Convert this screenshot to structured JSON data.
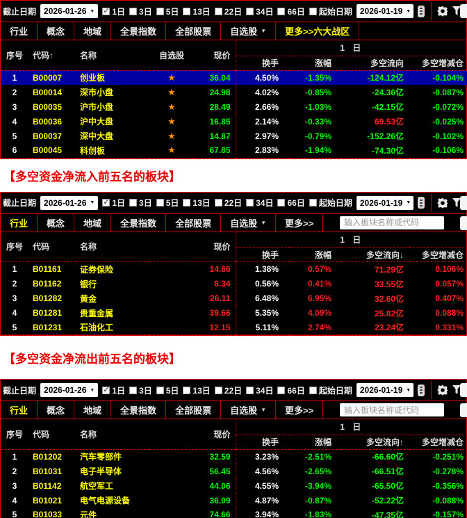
{
  "colors": {
    "panel_bg": "#000000",
    "frame_red": "#e00000",
    "dashed_red": "#c80000",
    "value_green": "#00ff00",
    "value_red": "#ff2222",
    "code_yellow": "#ffff00",
    "turnover_white": "#ffffff",
    "selected_row_bg": "#0000a2",
    "caption_red": "#e60000",
    "star_orange": "#ff9000",
    "tab_active_yellow": "#ffff00"
  },
  "captions": {
    "inflow": "【多空资金净流入前五名的板块】",
    "outflow": "【多空资金净流出前五名的板块】"
  },
  "toolbar": {
    "end_date_label": "截止日期",
    "end_date_value": "2026-01-26",
    "periods": [
      {
        "label": "1日",
        "checked": true
      },
      {
        "label": "3日",
        "checked": false
      },
      {
        "label": "5日",
        "checked": false
      },
      {
        "label": "13日",
        "checked": false
      },
      {
        "label": "22日",
        "checked": false
      },
      {
        "label": "34日",
        "checked": false
      },
      {
        "label": "66日",
        "checked": false
      }
    ],
    "start_date_label": "起始日期",
    "start_date_checked": false,
    "start_date_value": "2026-01-19",
    "icons": [
      "list-icon",
      "gear-icon",
      "filter-icon"
    ]
  },
  "search_placeholder": "输入板块名称或代码",
  "group_header": "1 日",
  "columns": {
    "seq": "序号",
    "code": "代码",
    "name": "名称",
    "watch": "自选股",
    "price": "现价",
    "turnover": "换手",
    "change": "涨幅",
    "flow": "多空流向",
    "delta": "多空增减仓"
  },
  "panels": [
    {
      "id": "main-indices",
      "tabs": [
        {
          "label": "行业"
        },
        {
          "label": "概念"
        },
        {
          "label": "地域"
        },
        {
          "label": "全景指数"
        },
        {
          "label": "全部股票"
        },
        {
          "label": "自选股",
          "dropdown": true
        },
        {
          "label": "更多>>六大战区",
          "active": true
        }
      ],
      "has_search": false,
      "has_watch_col": true,
      "code_sort_arrow": "↑",
      "flow_sort_arrow": "",
      "rows": [
        {
          "seq": "1",
          "code": "B00007",
          "name": "创业板",
          "price": "36.04",
          "turnover": "4.50%",
          "change": "-1.35%",
          "flow": "-124.12亿",
          "delta": "-0.104%",
          "vc": [
            "g",
            "w",
            "g",
            "g",
            "g"
          ],
          "selected": true
        },
        {
          "seq": "2",
          "code": "B00014",
          "name": "深市小盘",
          "price": "24.98",
          "turnover": "4.02%",
          "change": "-0.85%",
          "flow": "-24.36亿",
          "delta": "-0.087%",
          "vc": [
            "g",
            "w",
            "g",
            "g",
            "g"
          ]
        },
        {
          "seq": "3",
          "code": "B00035",
          "name": "沪市小盘",
          "price": "28.49",
          "turnover": "2.66%",
          "change": "-1.03%",
          "flow": "-42.15亿",
          "delta": "-0.072%",
          "vc": [
            "g",
            "w",
            "g",
            "g",
            "g"
          ]
        },
        {
          "seq": "4",
          "code": "B00036",
          "name": "沪中大盘",
          "price": "16.85",
          "turnover": "2.14%",
          "change": "-0.33%",
          "flow": "69.53亿",
          "delta": "-0.025%",
          "vc": [
            "g",
            "w",
            "g",
            "r",
            "g"
          ]
        },
        {
          "seq": "5",
          "code": "B00037",
          "name": "深中大盘",
          "price": "14.87",
          "turnover": "2.97%",
          "change": "-0.79%",
          "flow": "-152.26亿",
          "delta": "-0.102%",
          "vc": [
            "g",
            "w",
            "g",
            "g",
            "g"
          ]
        },
        {
          "seq": "6",
          "code": "B00045",
          "name": "科创板",
          "price": "67.85",
          "turnover": "2.83%",
          "change": "-1.94%",
          "flow": "-74.30亿",
          "delta": "-0.106%",
          "vc": [
            "g",
            "w",
            "g",
            "g",
            "g"
          ]
        }
      ]
    },
    {
      "id": "top-inflow",
      "tabs": [
        {
          "label": "行业",
          "active": true
        },
        {
          "label": "概念"
        },
        {
          "label": "地域"
        },
        {
          "label": "全景指数"
        },
        {
          "label": "全部股票"
        },
        {
          "label": "自选股",
          "dropdown": true
        },
        {
          "label": "更多>>"
        }
      ],
      "has_search": true,
      "has_watch_col": false,
      "code_sort_arrow": "",
      "flow_sort_arrow": "↓",
      "rows": [
        {
          "seq": "1",
          "code": "B01161",
          "name": "证券保险",
          "price": "14.66",
          "turnover": "1.38%",
          "change": "0.57%",
          "flow": "71.29亿",
          "delta": "0.106%",
          "vc": [
            "r",
            "w",
            "r",
            "r",
            "r"
          ]
        },
        {
          "seq": "2",
          "code": "B01162",
          "name": "银行",
          "price": "8.34",
          "turnover": "0.56%",
          "change": "0.41%",
          "flow": "33.55亿",
          "delta": "0.057%",
          "vc": [
            "r",
            "w",
            "r",
            "r",
            "r"
          ]
        },
        {
          "seq": "3",
          "code": "B01282",
          "name": "黄金",
          "price": "26.11",
          "turnover": "6.48%",
          "change": "6.95%",
          "flow": "32.60亿",
          "delta": "0.407%",
          "vc": [
            "r",
            "w",
            "r",
            "r",
            "r"
          ]
        },
        {
          "seq": "4",
          "code": "B01281",
          "name": "贵重金属",
          "price": "39.66",
          "turnover": "5.35%",
          "change": "4.09%",
          "flow": "25.82亿",
          "delta": "0.088%",
          "vc": [
            "r",
            "w",
            "r",
            "r",
            "r"
          ]
        },
        {
          "seq": "5",
          "code": "B01231",
          "name": "石油化工",
          "price": "12.15",
          "turnover": "5.11%",
          "change": "2.74%",
          "flow": "23.24亿",
          "delta": "0.331%",
          "vc": [
            "r",
            "w",
            "r",
            "r",
            "r"
          ]
        }
      ]
    },
    {
      "id": "top-outflow",
      "tabs": [
        {
          "label": "行业",
          "active": true
        },
        {
          "label": "概念"
        },
        {
          "label": "地域"
        },
        {
          "label": "全景指数"
        },
        {
          "label": "全部股票"
        },
        {
          "label": "自选股",
          "dropdown": true
        },
        {
          "label": "更多>>"
        }
      ],
      "has_search": true,
      "has_watch_col": false,
      "code_sort_arrow": "",
      "flow_sort_arrow": "↑",
      "rows": [
        {
          "seq": "1",
          "code": "B01202",
          "name": "汽车零部件",
          "price": "32.59",
          "turnover": "3.23%",
          "change": "-2.51%",
          "flow": "-66.60亿",
          "delta": "-0.251%",
          "vc": [
            "g",
            "w",
            "g",
            "g",
            "g"
          ]
        },
        {
          "seq": "2",
          "code": "B01031",
          "name": "电子半导体",
          "price": "56.45",
          "turnover": "4.56%",
          "change": "-2.65%",
          "flow": "-66.51亿",
          "delta": "-0.278%",
          "vc": [
            "g",
            "w",
            "g",
            "g",
            "g"
          ]
        },
        {
          "seq": "3",
          "code": "B01142",
          "name": "航空军工",
          "price": "44.06",
          "turnover": "4.55%",
          "change": "-3.94%",
          "flow": "-65.50亿",
          "delta": "-0.356%",
          "vc": [
            "g",
            "w",
            "g",
            "g",
            "g"
          ]
        },
        {
          "seq": "4",
          "code": "B01021",
          "name": "电气电源设备",
          "price": "36.09",
          "turnover": "4.87%",
          "change": "-0.87%",
          "flow": "-52.22亿",
          "delta": "-0.088%",
          "vc": [
            "g",
            "w",
            "g",
            "g",
            "g"
          ]
        },
        {
          "seq": "5",
          "code": "B01033",
          "name": "元件",
          "price": "74.66",
          "turnover": "3.94%",
          "change": "-1.83%",
          "flow": "-47.35亿",
          "delta": "-0.157%",
          "vc": [
            "g",
            "w",
            "g",
            "g",
            "g"
          ]
        }
      ]
    }
  ]
}
